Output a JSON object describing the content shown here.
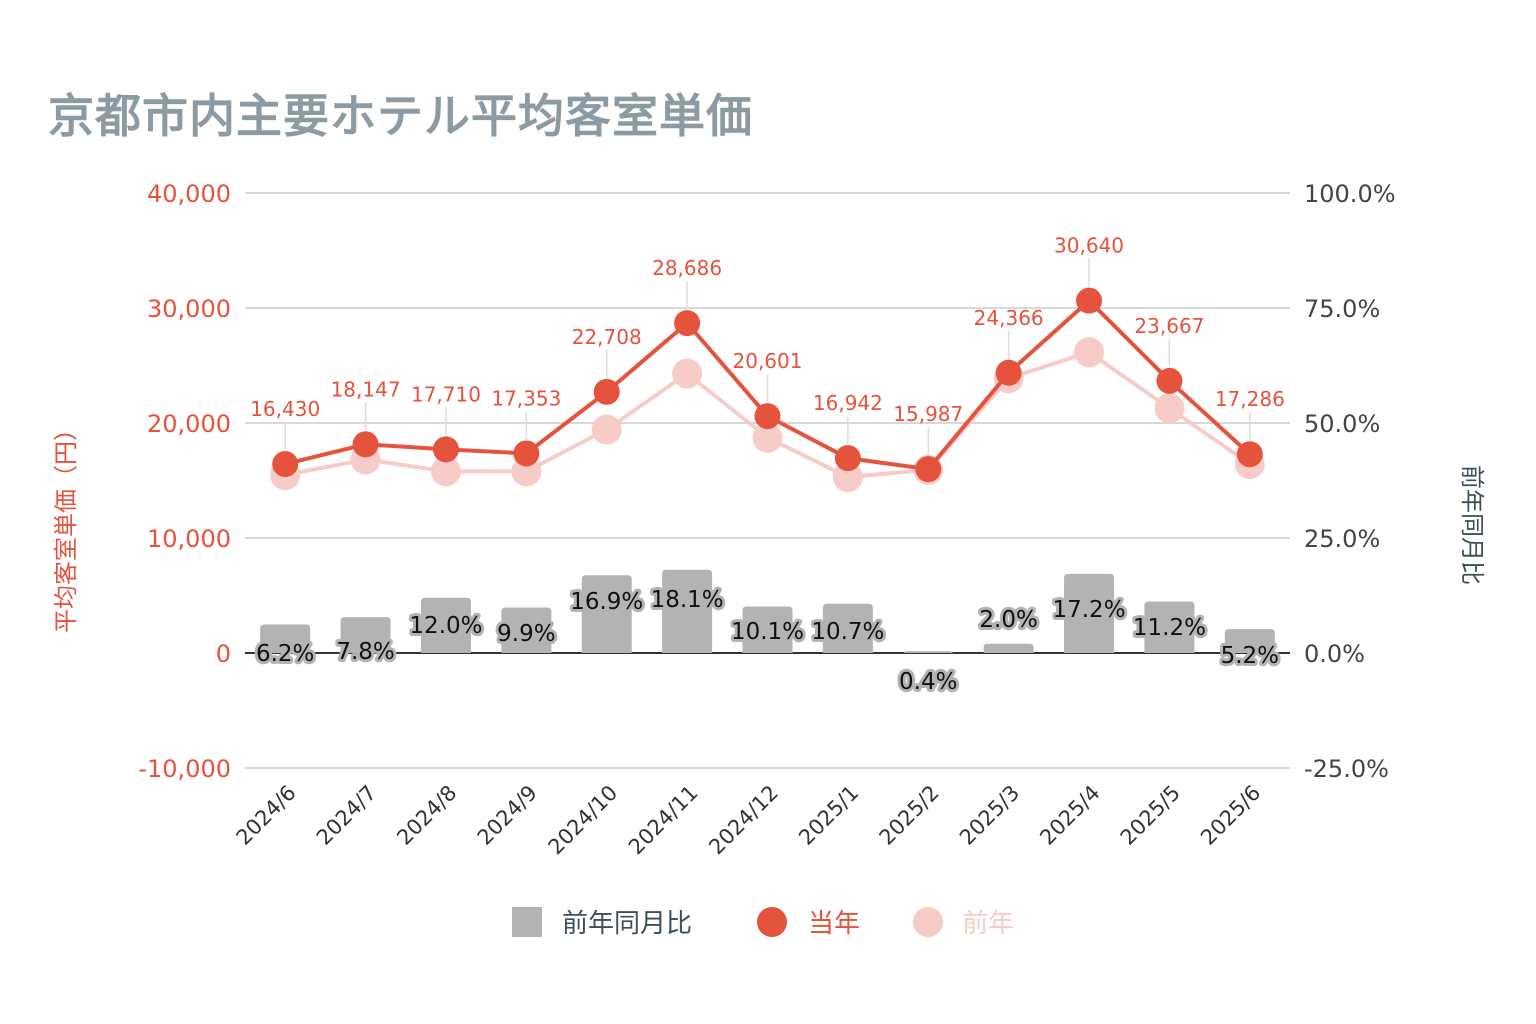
{
  "title": "京都市内主要ホテル平均客室単価",
  "chart_data": {
    "type": "combo-line-bar",
    "title": "京都市内主要ホテル平均客室単価",
    "categories": [
      "2024/6",
      "2024/7",
      "2024/8",
      "2024/9",
      "2024/10",
      "2024/11",
      "2024/12",
      "2025/1",
      "2025/2",
      "2025/3",
      "2025/4",
      "2025/5",
      "2025/6"
    ],
    "series": [
      {
        "name": "当年",
        "type": "line",
        "axis": "left",
        "values": [
          16430,
          18147,
          17710,
          17353,
          22708,
          28686,
          20601,
          16942,
          15987,
          24366,
          30640,
          23667,
          17286
        ],
        "labels": [
          "16,430",
          "18,147",
          "17,710",
          "17,353",
          "22,708",
          "28,686",
          "20,601",
          "16,942",
          "15,987",
          "24,366",
          "30,640",
          "23,667",
          "17,286"
        ]
      },
      {
        "name": "前年",
        "type": "line",
        "axis": "left",
        "values": [
          15470,
          16830,
          15800,
          15790,
          19430,
          24300,
          18720,
          15300,
          15920,
          23890,
          26150,
          21280,
          16430
        ]
      },
      {
        "name": "前年同月比",
        "type": "bar",
        "axis": "right",
        "values": [
          6.2,
          7.8,
          12.0,
          9.9,
          16.9,
          18.1,
          10.1,
          10.7,
          0.4,
          2.0,
          17.2,
          11.2,
          5.2
        ],
        "labels": [
          "6.2%",
          "7.8%",
          "12.0%",
          "9.9%",
          "16.9%",
          "18.1%",
          "10.1%",
          "10.7%",
          "0.4%",
          "2.0%",
          "17.2%",
          "11.2%",
          "5.2%"
        ]
      }
    ],
    "y_left": {
      "label": "平均客室単価（円）",
      "range": [
        -10000,
        40000
      ],
      "ticks": [
        "-10,000",
        "0",
        "10,000",
        "20,000",
        "30,000",
        "40,000"
      ]
    },
    "y_right": {
      "label": "前年同月比",
      "range": [
        -25,
        100
      ],
      "ticks": [
        "-25.0%",
        "0.0%",
        "25.0%",
        "50.0%",
        "75.0%",
        "100.0%"
      ]
    },
    "grid": true,
    "legend": {
      "position": "bottom",
      "items": [
        {
          "name": "前年同月比"
        },
        {
          "name": "当年"
        },
        {
          "name": "前年"
        }
      ]
    },
    "colors": {
      "current": "#e5533d",
      "previous": "#f6cbc8",
      "bar": "#b3b3b3",
      "left_axis": "#e5533d",
      "right_axis_title": "#3d4f5c",
      "title": "#8c9aa3"
    }
  }
}
